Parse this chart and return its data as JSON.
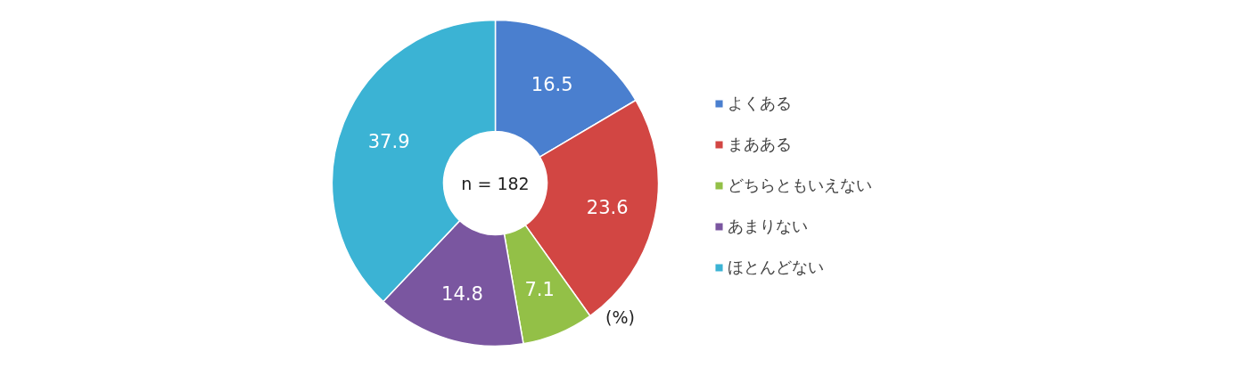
{
  "chart_data": {
    "type": "donut",
    "categories": [
      "よくある",
      "まあある",
      "どちらともいえない",
      "あまりない",
      "ほとんどない"
    ],
    "values": [
      16.5,
      23.6,
      7.1,
      14.8,
      37.9
    ],
    "colors": [
      "#4a7fcf",
      "#d24643",
      "#93c047",
      "#7a56a0",
      "#3bb3d4"
    ],
    "data_labels": true,
    "legend": "right",
    "annotations": [
      "n = 182",
      "(%)"
    ]
  }
}
